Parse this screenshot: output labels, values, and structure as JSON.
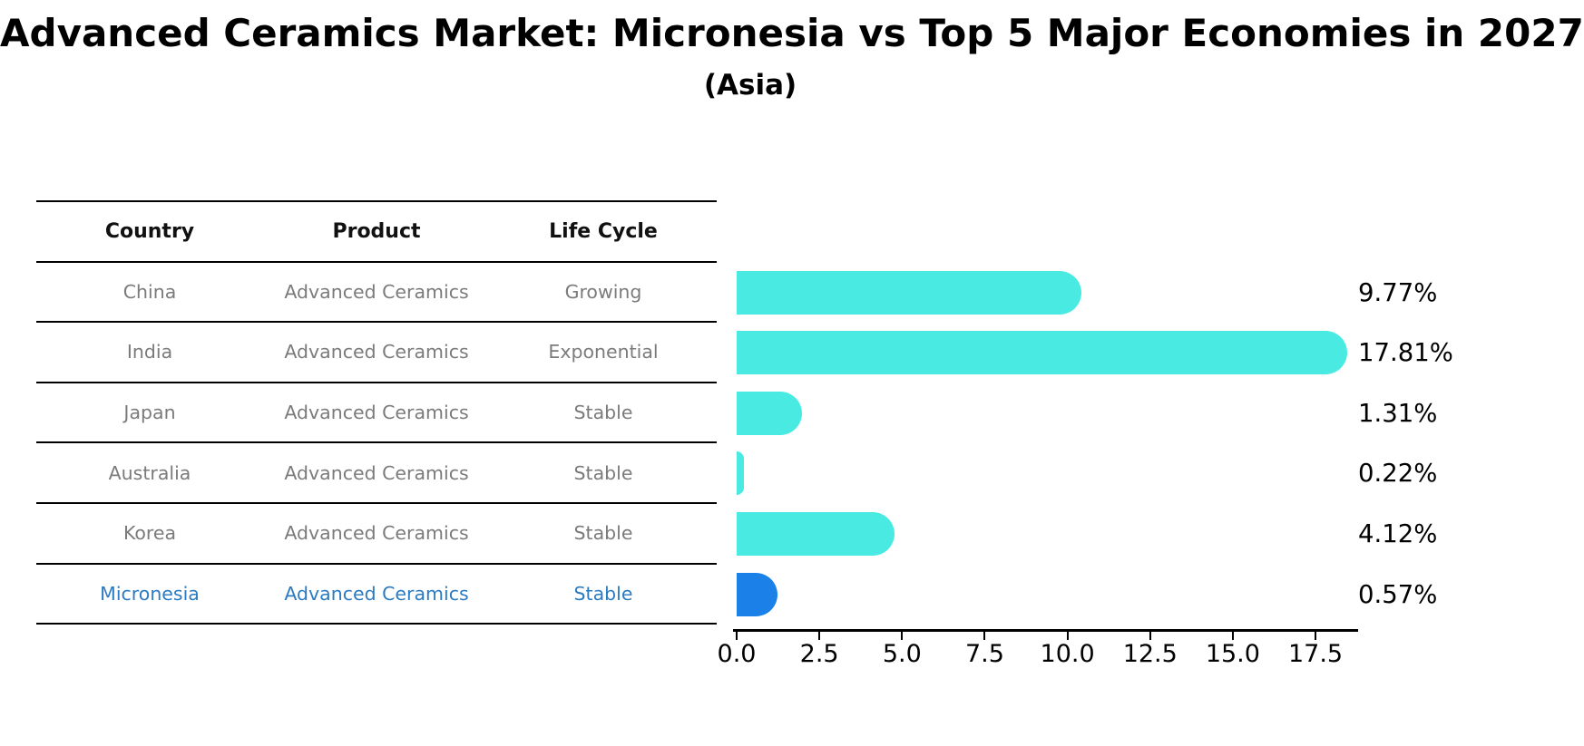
{
  "title": "Advanced Ceramics Market: Micronesia vs Top 5 Major Economies in 2027",
  "subtitle": "(Asia)",
  "table": {
    "headers": [
      "Country",
      "Product",
      "Life Cycle"
    ],
    "rows": [
      {
        "country": "China",
        "product": "Advanced Ceramics",
        "life_cycle": "Growing",
        "highlighted": false
      },
      {
        "country": "India",
        "product": "Advanced Ceramics",
        "life_cycle": "Exponential",
        "highlighted": false
      },
      {
        "country": "Japan",
        "product": "Advanced Ceramics",
        "life_cycle": "Stable",
        "highlighted": false
      },
      {
        "country": "Australia",
        "product": "Advanced Ceramics",
        "life_cycle": "Stable",
        "highlighted": false
      },
      {
        "country": "Korea",
        "product": "Advanced Ceramics",
        "life_cycle": "Stable",
        "highlighted": false
      },
      {
        "country": "Micronesia",
        "product": "Advanced Ceramics",
        "life_cycle": "Stable",
        "highlighted": true
      }
    ]
  },
  "chart_data": {
    "type": "bar",
    "orientation": "horizontal",
    "title": "Advanced Ceramics Market: Micronesia vs Top 5 Major Economies in 2027",
    "subtitle": "(Asia)",
    "categories": [
      "China",
      "India",
      "Japan",
      "Australia",
      "Korea",
      "Micronesia"
    ],
    "values": [
      9.77,
      17.81,
      1.31,
      0.22,
      4.12,
      0.57
    ],
    "bar_labels": [
      "9.77%",
      "17.81%",
      "1.31%",
      "0.22%",
      "4.12%",
      "0.57%"
    ],
    "xticks": [
      0.0,
      2.5,
      5.0,
      7.5,
      10.0,
      12.5,
      15.0,
      17.5
    ],
    "xlim": [
      0,
      18.9
    ],
    "grid": false,
    "legend": false,
    "highlight_index": 5,
    "bar_color": "#48eae2",
    "highlight_color": "#1b80e8",
    "value_suffix": "%"
  },
  "colors": {
    "background": "#ffffff",
    "title_text": "#000000",
    "table_header_text": "#111111",
    "table_row_text": "#7b7b7b",
    "highlight_text": "#2b7bc2",
    "table_line": "#000000",
    "axis": "#000000",
    "bar": "#48eae2",
    "highlight_bar": "#1b80e8"
  }
}
